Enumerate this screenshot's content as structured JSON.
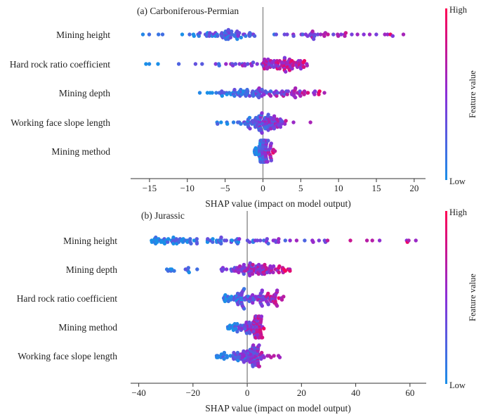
{
  "colors": {
    "low": "#1a8fe8",
    "high": "#ff0052",
    "zero_line": "#999999",
    "axis": "#333333"
  },
  "colorbar": {
    "high_label": "High",
    "low_label": "Low",
    "title": "Feature value"
  },
  "chart_data": [
    {
      "type": "scatter",
      "title": "(a) Carboniferous-Permian",
      "xlabel": "SHAP value (impact on model output)",
      "xlim": [
        -17.5,
        21.5
      ],
      "xticks": [
        -15,
        -10,
        -5,
        0,
        5,
        10,
        15,
        20
      ],
      "xtick_labels": [
        "−15",
        "−10",
        "−5",
        "0",
        "5",
        "10",
        "15",
        "20"
      ],
      "features": [
        {
          "name": "Mining height",
          "range": [
            -15.8,
            20.0
          ],
          "density": [
            [
              -15.5,
              0.8
            ],
            [
              -11,
              1.2
            ],
            [
              -6,
              4
            ],
            [
              -4.5,
              6
            ],
            [
              -2,
              1.5
            ],
            [
              -0.5,
              0.5
            ],
            [
              3,
              0.8
            ],
            [
              6,
              4
            ],
            [
              8,
              3
            ],
            [
              12,
              1.5
            ],
            [
              16,
              1.2
            ],
            [
              20,
              0.6
            ]
          ]
        },
        {
          "name": "Hard rock ratio coefficient",
          "range": [
            -15.5,
            5.5
          ],
          "density": [
            [
              -15.5,
              0.7
            ],
            [
              -13,
              0.7
            ],
            [
              -10,
              0.5
            ],
            [
              -7,
              0.8
            ],
            [
              -4,
              1.5
            ],
            [
              -1,
              3
            ],
            [
              1,
              6
            ],
            [
              2.5,
              7
            ],
            [
              4,
              5
            ],
            [
              5.5,
              3
            ]
          ]
        },
        {
          "name": "Mining depth",
          "range": [
            -8,
            8.5
          ],
          "density": [
            [
              -8,
              0.7
            ],
            [
              -6,
              1.5
            ],
            [
              -4,
              4
            ],
            [
              -2.5,
              6
            ],
            [
              -1,
              4
            ],
            [
              0,
              2
            ],
            [
              1.5,
              4
            ],
            [
              3.5,
              5
            ],
            [
              5.5,
              4
            ],
            [
              8.5,
              1.5
            ]
          ]
        },
        {
          "name": "Working face slope length",
          "range": [
            -6,
            6.5
          ],
          "density": [
            [
              -6,
              0.8
            ],
            [
              -4,
              0.8
            ],
            [
              -2.5,
              1.5
            ],
            [
              -1.5,
              4
            ],
            [
              -0.5,
              6
            ],
            [
              0.5,
              7
            ],
            [
              1.5,
              5
            ],
            [
              2.5,
              2
            ],
            [
              4,
              0.5
            ],
            [
              6.5,
              0.5
            ]
          ]
        },
        {
          "name": "Mining method",
          "range": [
            -0.8,
            1.5
          ],
          "density": [
            [
              -0.8,
              1.5
            ],
            [
              -0.3,
              6
            ],
            [
              0,
              8
            ],
            [
              0.3,
              6
            ],
            [
              0.8,
              3
            ],
            [
              1.5,
              1
            ]
          ]
        }
      ]
    },
    {
      "type": "scatter",
      "title": "(b) Jurassic",
      "xlabel": "SHAP value (impact on model output)",
      "xlim": [
        -43,
        66
      ],
      "xticks": [
        -40,
        -20,
        0,
        20,
        40,
        60
      ],
      "xtick_labels": [
        "−40",
        "−20",
        "0",
        "20",
        "40",
        "60"
      ],
      "features": [
        {
          "name": "Mining height",
          "range": [
            -35,
            62
          ],
          "density": [
            [
              -35,
              2
            ],
            [
              -28,
              3
            ],
            [
              -22,
              2.5
            ],
            [
              -16,
              3
            ],
            [
              -10,
              2.5
            ],
            [
              -5,
              2.5
            ],
            [
              0,
              1.5
            ],
            [
              5,
              1.5
            ],
            [
              10,
              2
            ],
            [
              15,
              1.2
            ],
            [
              22,
              1.5
            ],
            [
              28,
              1.5
            ],
            [
              35,
              0.8
            ],
            [
              45,
              0.8
            ],
            [
              55,
              0.8
            ],
            [
              62,
              0.8
            ]
          ]
        },
        {
          "name": "Mining depth",
          "range": [
            -30,
            16
          ],
          "density": [
            [
              -30,
              1
            ],
            [
              -24,
              1
            ],
            [
              -20,
              0.8
            ],
            [
              -14,
              0.4
            ],
            [
              -7,
              3
            ],
            [
              -3,
              5
            ],
            [
              0,
              4
            ],
            [
              3,
              4
            ],
            [
              6,
              4
            ],
            [
              10,
              4
            ],
            [
              13,
              3
            ],
            [
              16,
              1.5
            ]
          ]
        },
        {
          "name": "Hard rock ratio coefficient",
          "range": [
            -9,
            13
          ],
          "density": [
            [
              -9,
              1.5
            ],
            [
              -6,
              3
            ],
            [
              -3,
              5
            ],
            [
              0,
              3
            ],
            [
              3,
              4
            ],
            [
              6,
              5
            ],
            [
              9,
              3
            ],
            [
              13,
              1
            ]
          ]
        },
        {
          "name": "Mining method",
          "range": [
            -7,
            6
          ],
          "density": [
            [
              -7,
              2
            ],
            [
              -4,
              3
            ],
            [
              -1,
              2
            ],
            [
              1.5,
              3
            ],
            [
              3,
              5
            ],
            [
              4.5,
              5
            ],
            [
              6,
              2
            ]
          ]
        },
        {
          "name": "Working face slope length",
          "range": [
            -11,
            12
          ],
          "density": [
            [
              -11,
              1.5
            ],
            [
              -7,
              2
            ],
            [
              -4,
              2.5
            ],
            [
              -1,
              5
            ],
            [
              1,
              7
            ],
            [
              3,
              6
            ],
            [
              5,
              4
            ],
            [
              8,
              2
            ],
            [
              12,
              0.8
            ]
          ]
        }
      ]
    }
  ]
}
